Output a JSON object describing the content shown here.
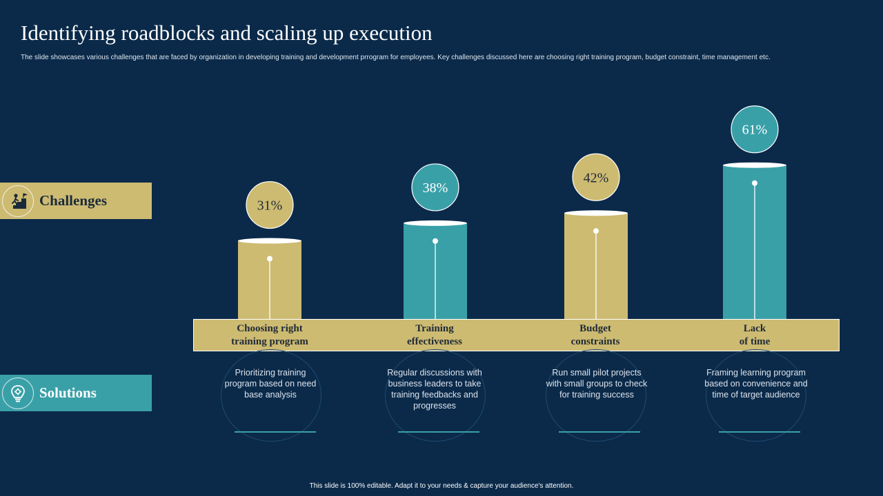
{
  "title": "Identifying roadblocks and scaling up execution",
  "subtitle": "The slide showcases various challenges that are faced by organization in developing training and development prrogram for employees. Key challenges discussed here are choosing right training program, budget constraint, time management etc.",
  "bands": {
    "challenges_label": "Challenges",
    "challenges_icon": "person-climbing-stairs-icon",
    "solutions_label": "Solutions",
    "solutions_icon": "lightbulb-gear-icon"
  },
  "solutions": [
    "Prioritizing training program based on need base analysis",
    "Regular discussions with business leaders to take training feedbacks and progresses",
    "Run small pilot projects with small groups to check for training success",
    "Framing learning program based on convenience and time of target audience"
  ],
  "colors": {
    "gold": "#cdbb72",
    "teal": "#3aa0a8",
    "background": "#0b2a4a"
  },
  "chart_data": {
    "type": "bar",
    "title": "",
    "categories": [
      "Choosing right\ntraining program",
      "Training\neffectiveness",
      "Budget\nconstraints",
      "Lack\nof time"
    ],
    "values": [
      31,
      38,
      42,
      61
    ],
    "value_labels": [
      "31%",
      "38%",
      "42%",
      "61%"
    ],
    "unit": "%",
    "bar_colors": [
      "#cdbb72",
      "#3aa0a8",
      "#cdbb72",
      "#3aa0a8"
    ],
    "ylim": [
      0,
      100
    ],
    "grid": false,
    "legend": "none"
  },
  "footer": "This slide is 100% editable.  Adapt it to your needs & capture your audience's attention."
}
